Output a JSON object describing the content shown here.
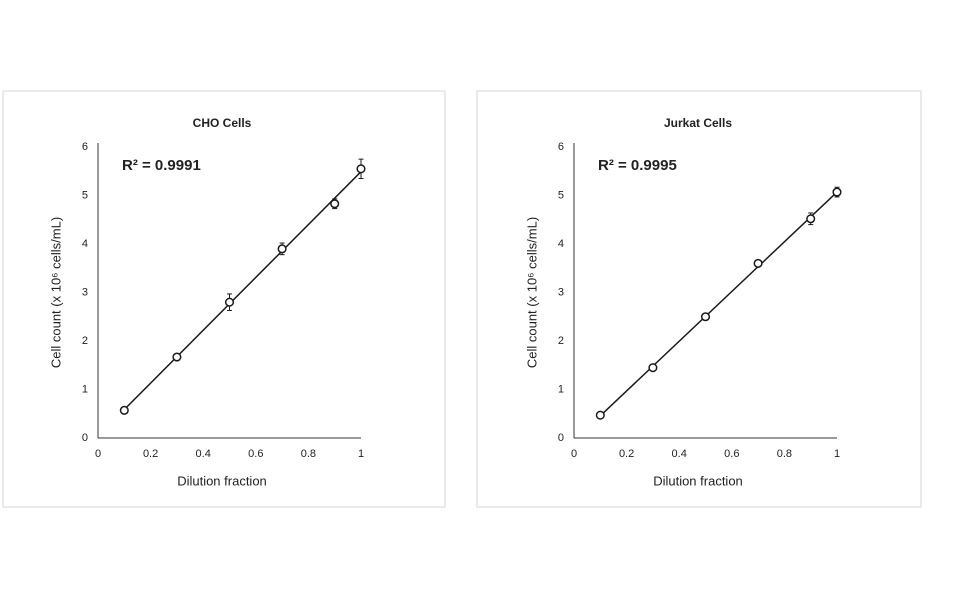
{
  "chart_data": [
    {
      "type": "scatter",
      "title": "CHO Cells",
      "annotation": "R² = 0.9991",
      "x_label": "Dilution fraction",
      "y_label": "Cell count (x 10⁶ cells/mL)",
      "x": [
        0.1,
        0.3,
        0.5,
        0.7,
        0.9,
        1
      ],
      "values": [
        0.57,
        1.67,
        2.8,
        3.9,
        4.83,
        5.55
      ],
      "errors": [
        0.03,
        0.05,
        0.17,
        0.12,
        0.1,
        0.2
      ],
      "color": "#1a1a1a",
      "trendline": true,
      "xlim": [
        0,
        1
      ],
      "xticks": [
        0,
        0.2,
        0.4,
        0.6,
        0.8,
        1
      ],
      "ylim": [
        0,
        6
      ],
      "yticks": [
        0,
        1,
        2,
        3,
        4,
        5,
        6
      ]
    },
    {
      "type": "scatter",
      "title": "Jurkat Cells",
      "annotation": "R² = 0.9995",
      "x_label": "Dilution fraction",
      "y_label": "Cell count (x 10⁶ cells/mL)",
      "x": [
        0.1,
        0.3,
        0.5,
        0.7,
        0.9,
        1
      ],
      "values": [
        0.47,
        1.45,
        2.5,
        3.6,
        4.52,
        5.07
      ],
      "errors": [
        0.03,
        0.06,
        0.04,
        0.04,
        0.12,
        0.1
      ],
      "color": "#1a1a1a",
      "trendline": true,
      "xlim": [
        0,
        1
      ],
      "xticks": [
        0,
        0.2,
        0.4,
        0.6,
        0.8,
        1
      ],
      "ylim": [
        0,
        6
      ],
      "yticks": [
        0,
        1,
        2,
        3,
        4,
        5,
        6
      ]
    }
  ]
}
